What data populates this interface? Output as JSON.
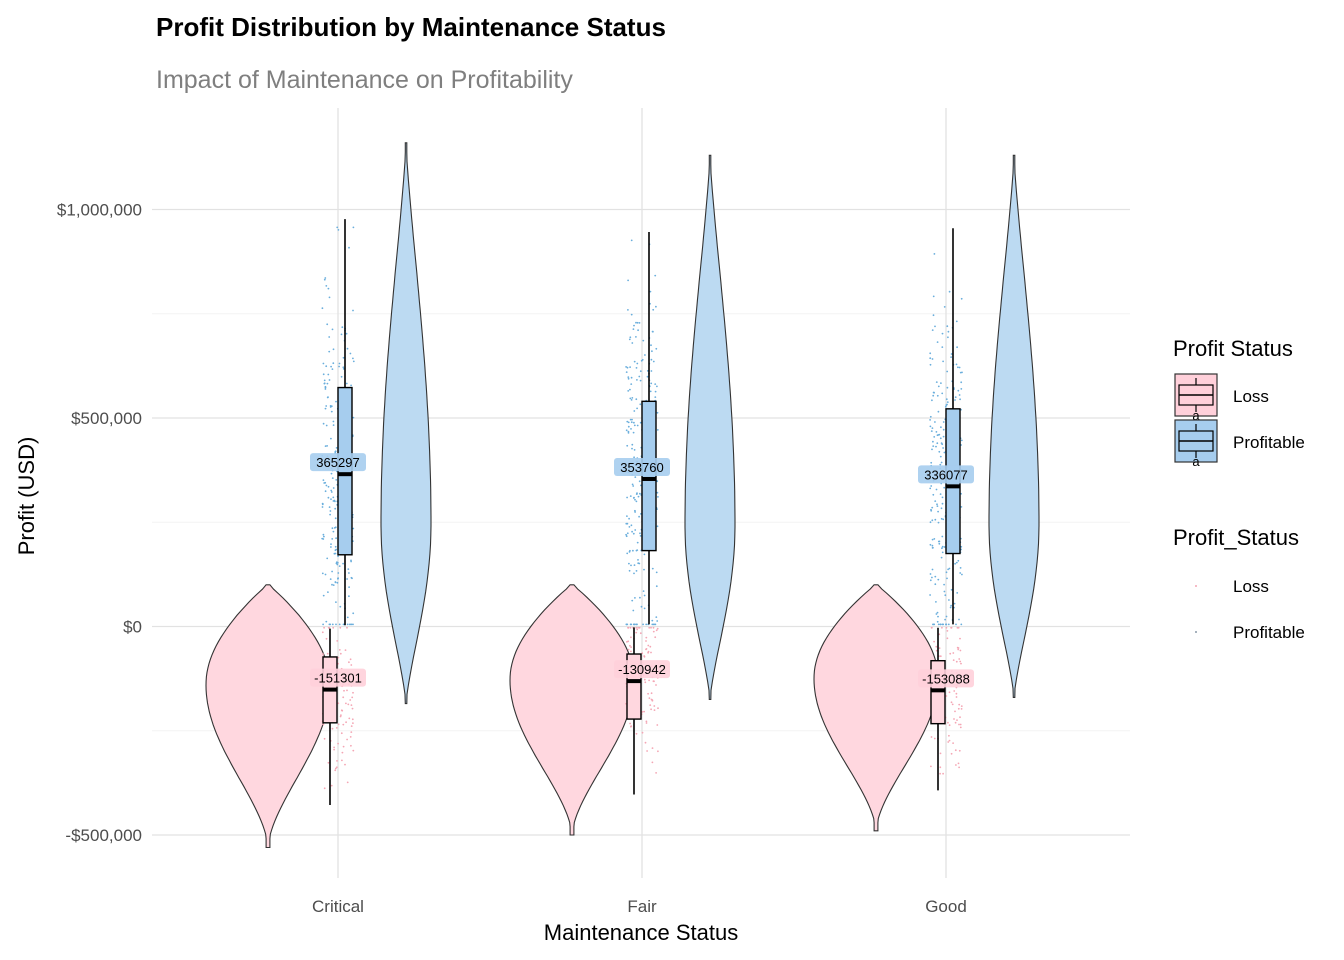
{
  "title": "Profit Distribution by Maintenance Status",
  "subtitle": "Impact of Maintenance on Profitability",
  "chart_data": {
    "type": "violin",
    "title": "Profit Distribution by Maintenance Status",
    "subtitle": "Impact of Maintenance on Profitability",
    "xlabel": "Maintenance Status",
    "ylabel": "Profit (USD)",
    "categories": [
      "Critical",
      "Fair",
      "Good"
    ],
    "ylim": [
      -600000,
      1250000
    ],
    "yticks": [
      -500000,
      0,
      500000,
      1000000
    ],
    "ytick_labels": [
      "-$500,000",
      "$0",
      "$500,000",
      "$1,000,000"
    ],
    "grid": true,
    "legend_position": "right",
    "colors": {
      "Loss": "#ffc0cb",
      "Profitable": "#a6cdee",
      "loss_points": "#f4a6b4",
      "profit_points": "#6aaedc"
    },
    "series": [
      {
        "name": "Loss",
        "median": [
          -151301,
          -130942,
          -153088
        ],
        "q1": [
          -231000,
          -222000,
          -233000
        ],
        "q3": [
          -73000,
          -66000,
          -82000
        ],
        "whisker_low": [
          -428000,
          -403000,
          -393000
        ],
        "whisker_high": [
          -5000,
          -2000,
          -3000
        ],
        "violin_min": [
          -530000,
          -500000,
          -490000
        ],
        "violin_max": [
          100000,
          100000,
          100000
        ]
      },
      {
        "name": "Profitable",
        "median": [
          365297,
          353760,
          336077
        ],
        "q1": [
          172000,
          182000,
          175000
        ],
        "q3": [
          573000,
          540000,
          522000
        ],
        "whisker_low": [
          3000,
          5000,
          5000
        ],
        "whisker_high": [
          977000,
          946000,
          955000
        ],
        "violin_min": [
          -185000,
          -175000,
          -170000
        ],
        "violin_max": [
          1160000,
          1130000,
          1130000
        ]
      }
    ],
    "median_labels": {
      "Loss": [
        "-151301",
        "-130942",
        "-153088"
      ],
      "Profitable": [
        "365297",
        "353760",
        "336077"
      ]
    }
  },
  "legends": [
    {
      "title": "Profit Status",
      "items": [
        "Loss",
        "Profitable"
      ],
      "key_text": "a"
    },
    {
      "title": "Profit_Status",
      "items": [
        "Loss",
        "Profitable"
      ]
    }
  ]
}
